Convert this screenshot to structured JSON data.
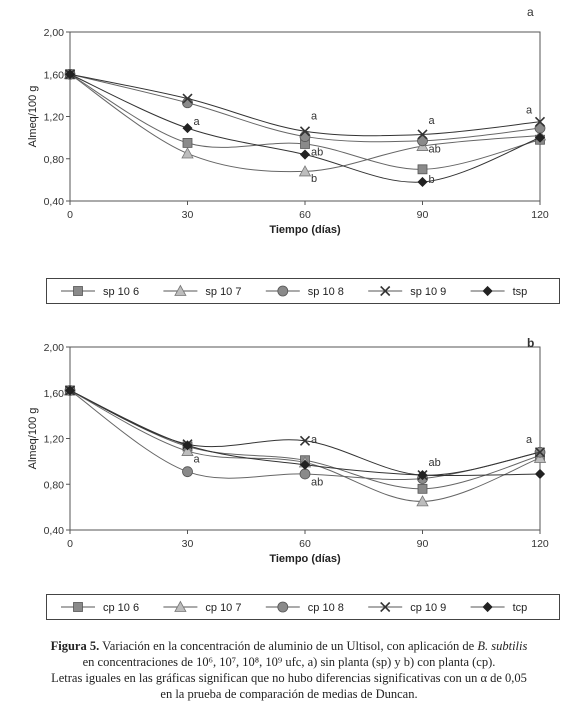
{
  "chart_data": [
    {
      "type": "line",
      "panel_letter": "a",
      "xlabel": "Tiempo (días)",
      "ylabel": "Almeq/100 g",
      "x": [
        0,
        30,
        60,
        90,
        120
      ],
      "x_ticks": [
        "0",
        "30",
        "60",
        "90",
        "120"
      ],
      "ylim": [
        0.4,
        2.0
      ],
      "y_ticks": [
        "0,40",
        "0,80",
        "1,20",
        "1,60",
        "2,00"
      ],
      "y_tick_values": [
        0.4,
        0.8,
        1.2,
        1.6,
        2.0
      ],
      "grid": false,
      "legend_position": "bottom",
      "series": [
        {
          "name": "sp 10 6",
          "marker": "square",
          "color": "#8a8a8a",
          "values": [
            1.6,
            0.95,
            0.94,
            0.7,
            0.98
          ]
        },
        {
          "name": "sp 10 7",
          "marker": "triangle",
          "color": "#9a9a9a",
          "values": [
            1.6,
            0.85,
            0.68,
            0.92,
            1.02
          ]
        },
        {
          "name": "sp 10 8",
          "marker": "circle",
          "color": "#8a8a8a",
          "values": [
            1.6,
            1.33,
            1.01,
            0.97,
            1.09
          ]
        },
        {
          "name": "sp 10 9",
          "marker": "x",
          "color": "#333333",
          "values": [
            1.6,
            1.37,
            1.06,
            1.03,
            1.15
          ]
        },
        {
          "name": "tsp",
          "marker": "diamond",
          "color": "#222222",
          "values": [
            1.6,
            1.09,
            0.84,
            0.58,
            1.0
          ]
        }
      ],
      "annotations": [
        {
          "text": "a",
          "x": 30,
          "y": 1.12
        },
        {
          "text": "a",
          "x": 60,
          "y": 1.17
        },
        {
          "text": "ab",
          "x": 60,
          "y": 0.83
        },
        {
          "text": "b",
          "x": 60,
          "y": 0.58
        },
        {
          "text": "a",
          "x": 90,
          "y": 1.13
        },
        {
          "text": "ab",
          "x": 90,
          "y": 0.86
        },
        {
          "text": "b",
          "x": 90,
          "y": 0.57
        },
        {
          "text": "a",
          "x": 120,
          "y": 1.23
        }
      ]
    },
    {
      "type": "line",
      "panel_letter": "b",
      "xlabel": "Tiempo (días)",
      "ylabel": "Almeq/100 g",
      "x": [
        0,
        30,
        60,
        90,
        120
      ],
      "x_ticks": [
        "0",
        "30",
        "60",
        "90",
        "120"
      ],
      "ylim": [
        0.4,
        2.0
      ],
      "y_ticks": [
        "0,40",
        "0,80",
        "1,20",
        "1,60",
        "2,00"
      ],
      "y_tick_values": [
        0.4,
        0.8,
        1.2,
        1.6,
        2.0
      ],
      "grid": false,
      "legend_position": "bottom",
      "series": [
        {
          "name": "cp 10 6",
          "marker": "square",
          "color": "#8a8a8a",
          "values": [
            1.62,
            1.13,
            1.01,
            0.76,
            1.05
          ]
        },
        {
          "name": "cp 10 7",
          "marker": "triangle",
          "color": "#9a9a9a",
          "values": [
            1.62,
            1.09,
            0.99,
            0.65,
            1.03
          ]
        },
        {
          "name": "cp 10 8",
          "marker": "circle",
          "color": "#8a8a8a",
          "values": [
            1.62,
            0.91,
            0.89,
            0.85,
            1.08
          ]
        },
        {
          "name": "cp 10 9",
          "marker": "x",
          "color": "#333333",
          "values": [
            1.62,
            1.15,
            1.18,
            0.88,
            1.08
          ]
        },
        {
          "name": "tcp",
          "marker": "diamond",
          "color": "#222222",
          "values": [
            1.62,
            1.14,
            0.97,
            0.88,
            0.89
          ]
        }
      ],
      "annotations": [
        {
          "text": "a",
          "x": 30,
          "y": 0.99
        },
        {
          "text": "a",
          "x": 60,
          "y": 1.16
        },
        {
          "text": "ab",
          "x": 60,
          "y": 0.79
        },
        {
          "text": "ab",
          "x": 90,
          "y": 0.96
        },
        {
          "text": "a",
          "x": 120,
          "y": 1.16
        }
      ]
    }
  ],
  "caption": {
    "label": "Figura 5.",
    "line1_pre": " Variación en la concentración de aluminio de un Ultisol, con aplicación de ",
    "species": "B. subtilis",
    "line2": "en concentraciones de 10⁶, 10⁷, 10⁸, 10⁹ ufc, a) sin planta (sp) y b) con planta (cp).",
    "line3": "Letras iguales en las gráficas significan que no hubo diferencias significativas con un α de 0,05",
    "line4": "en la prueba de comparación de medias de Duncan."
  }
}
